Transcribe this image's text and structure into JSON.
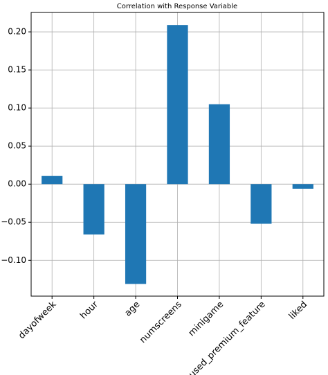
{
  "chart_data": {
    "type": "bar",
    "title": "Correlation with Response Variable",
    "categories": [
      "dayofweek",
      "hour",
      "age",
      "numscreens",
      "minigame",
      "used_premium_feature",
      "liked"
    ],
    "values": [
      0.011,
      -0.066,
      -0.131,
      0.209,
      0.105,
      -0.052,
      -0.006
    ],
    "color": "#1f77b4",
    "ylim": [
      -0.147,
      0.2255
    ],
    "yticks": [
      {
        "value": -0.1,
        "label": "−0.10"
      },
      {
        "value": -0.05,
        "label": "−0.05"
      },
      {
        "value": 0,
        "label": "0.00"
      },
      {
        "value": 0.05,
        "label": "0.05"
      },
      {
        "value": 0.1,
        "label": "0.10"
      },
      {
        "value": 0.15,
        "label": "0.15"
      },
      {
        "value": 0.2,
        "label": "0.20"
      }
    ],
    "grid": true
  }
}
